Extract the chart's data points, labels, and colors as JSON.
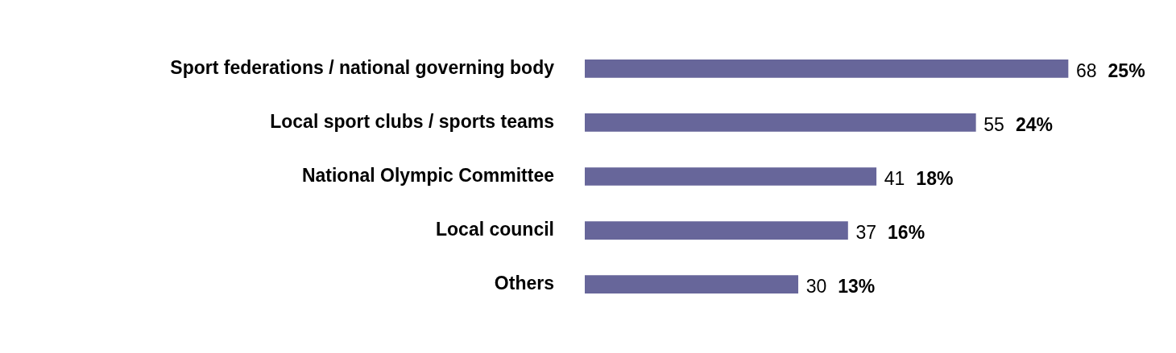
{
  "chart_data": {
    "type": "bar",
    "orientation": "horizontal",
    "categories": [
      "Sport federations / national governing body",
      "Local sport clubs / sports teams",
      "National Olympic Committee",
      "Local council",
      "Others"
    ],
    "values": [
      68,
      55,
      41,
      37,
      30
    ],
    "color": "#67669a",
    "value_labels": [
      "68 25%",
      "55 24%",
      "41 18%",
      "37 16%",
      "30 13%"
    ],
    "grid": false,
    "legend": false
  }
}
